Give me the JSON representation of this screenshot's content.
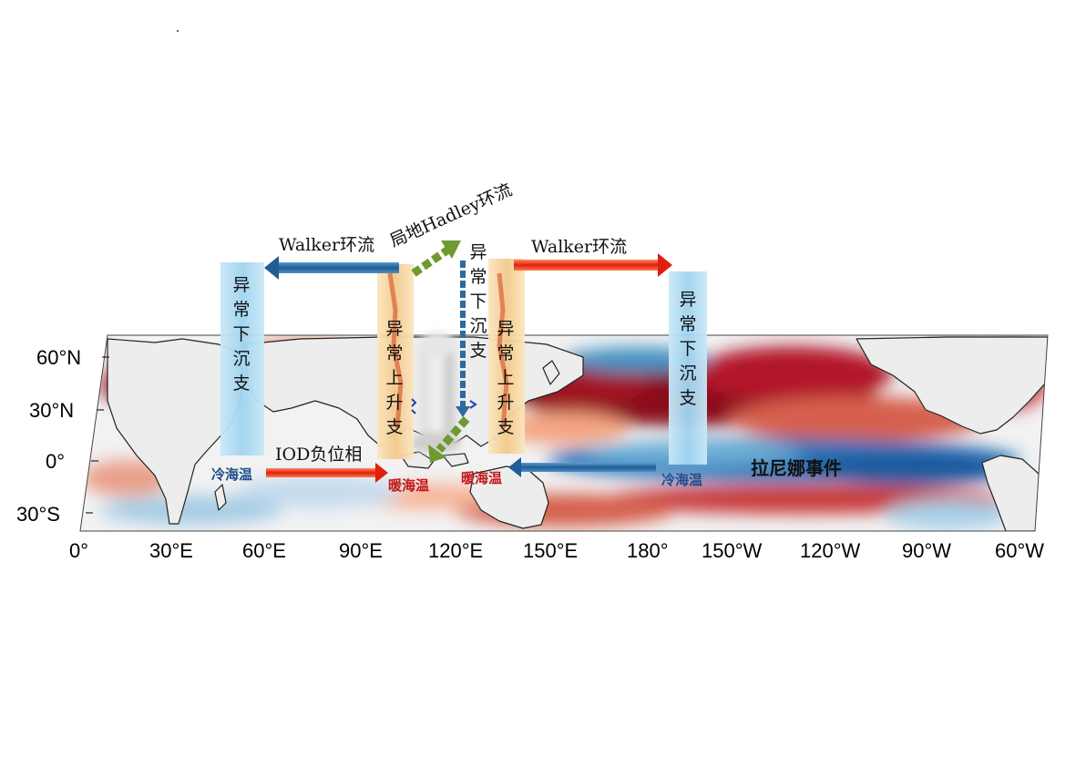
{
  "diagram": {
    "labels": {
      "walker_left": "Walker环流",
      "walker_right": "Walker环流",
      "hadley": "局地Hadley环流",
      "iod": "IOD负位相",
      "la_nina": "拉尼娜事件",
      "cold_sst_left": "冷海温",
      "cold_sst_right": "冷海温",
      "warm_sst_left": "暖海温",
      "warm_sst_right": "暖海温"
    },
    "columns": {
      "descend_left": "异常下沉支",
      "ascend_left": "异常上升支",
      "descend_mid": "异常下沉支",
      "ascend_right": "异常上升支",
      "descend_right": "异常下沉支"
    },
    "axes": {
      "lat_ticks": [
        "60°N",
        "30°N",
        "0°",
        "30°S"
      ],
      "lon_ticks": [
        "0°",
        "30°E",
        "60°E",
        "90°E",
        "120°E",
        "150°E",
        "180°",
        "150°W",
        "120°W",
        "90°W",
        "60°W"
      ]
    },
    "colors": {
      "warm_anomaly": "#b2182b",
      "cold_anomaly": "#2166ac",
      "walker_left_arrow": "#2c6aa0",
      "walker_right_arrow": "#e8361a",
      "hadley_arrow": "#6e9a30",
      "descending_column": "#a9d8f0",
      "ascending_column": "#f8dca8"
    }
  }
}
